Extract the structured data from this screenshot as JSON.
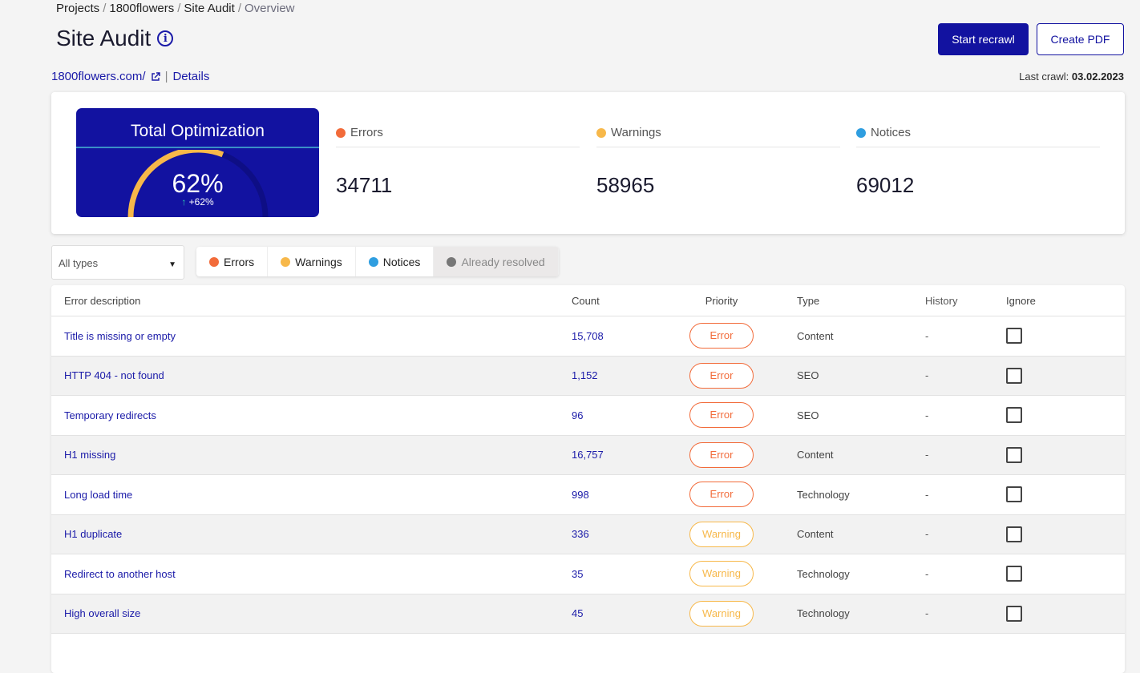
{
  "breadcrumb": [
    "Projects",
    "1800flowers",
    "Site Audit",
    "Overview"
  ],
  "title": "Site Audit",
  "buttons": {
    "recrawl": "Start recrawl",
    "pdf": "Create PDF"
  },
  "site": {
    "url": "1800flowers.com/",
    "details": "Details"
  },
  "last_crawl": {
    "label": "Last crawl:",
    "date": "03.02.2023"
  },
  "optimization": {
    "title": "Total Optimization",
    "value": "62%",
    "percent": 62,
    "delta": "+62%"
  },
  "stats": [
    {
      "label": "Errors",
      "value": "34711",
      "color": "#f26b3a"
    },
    {
      "label": "Warnings",
      "value": "58965",
      "color": "#f7b84a"
    },
    {
      "label": "Notices",
      "value": "69012",
      "color": "#2f9ee0"
    }
  ],
  "filter_select": "All types",
  "filters": [
    {
      "label": "Errors",
      "color": "#f26b3a"
    },
    {
      "label": "Warnings",
      "color": "#f7b84a"
    },
    {
      "label": "Notices",
      "color": "#2f9ee0"
    },
    {
      "label": "Already resolved",
      "color": "#777777"
    }
  ],
  "table": {
    "headers": [
      "Error description",
      "Count",
      "Priority",
      "Type",
      "History",
      "Ignore"
    ],
    "rows": [
      {
        "desc": "Title is missing or empty",
        "count": "15,708",
        "priority": "Error",
        "type": "Content",
        "history": "-"
      },
      {
        "desc": "HTTP 404 - not found",
        "count": "1,152",
        "priority": "Error",
        "type": "SEO",
        "history": "-"
      },
      {
        "desc": "Temporary redirects",
        "count": "96",
        "priority": "Error",
        "type": "SEO",
        "history": "-"
      },
      {
        "desc": "H1 missing",
        "count": "16,757",
        "priority": "Error",
        "type": "Content",
        "history": "-"
      },
      {
        "desc": "Long load time",
        "count": "998",
        "priority": "Error",
        "type": "Technology",
        "history": "-"
      },
      {
        "desc": "H1 duplicate",
        "count": "336",
        "priority": "Warning",
        "type": "Content",
        "history": "-"
      },
      {
        "desc": "Redirect to another host",
        "count": "35",
        "priority": "Warning",
        "type": "Technology",
        "history": "-"
      },
      {
        "desc": "High overall size",
        "count": "45",
        "priority": "Warning",
        "type": "Technology",
        "history": "-"
      }
    ]
  }
}
